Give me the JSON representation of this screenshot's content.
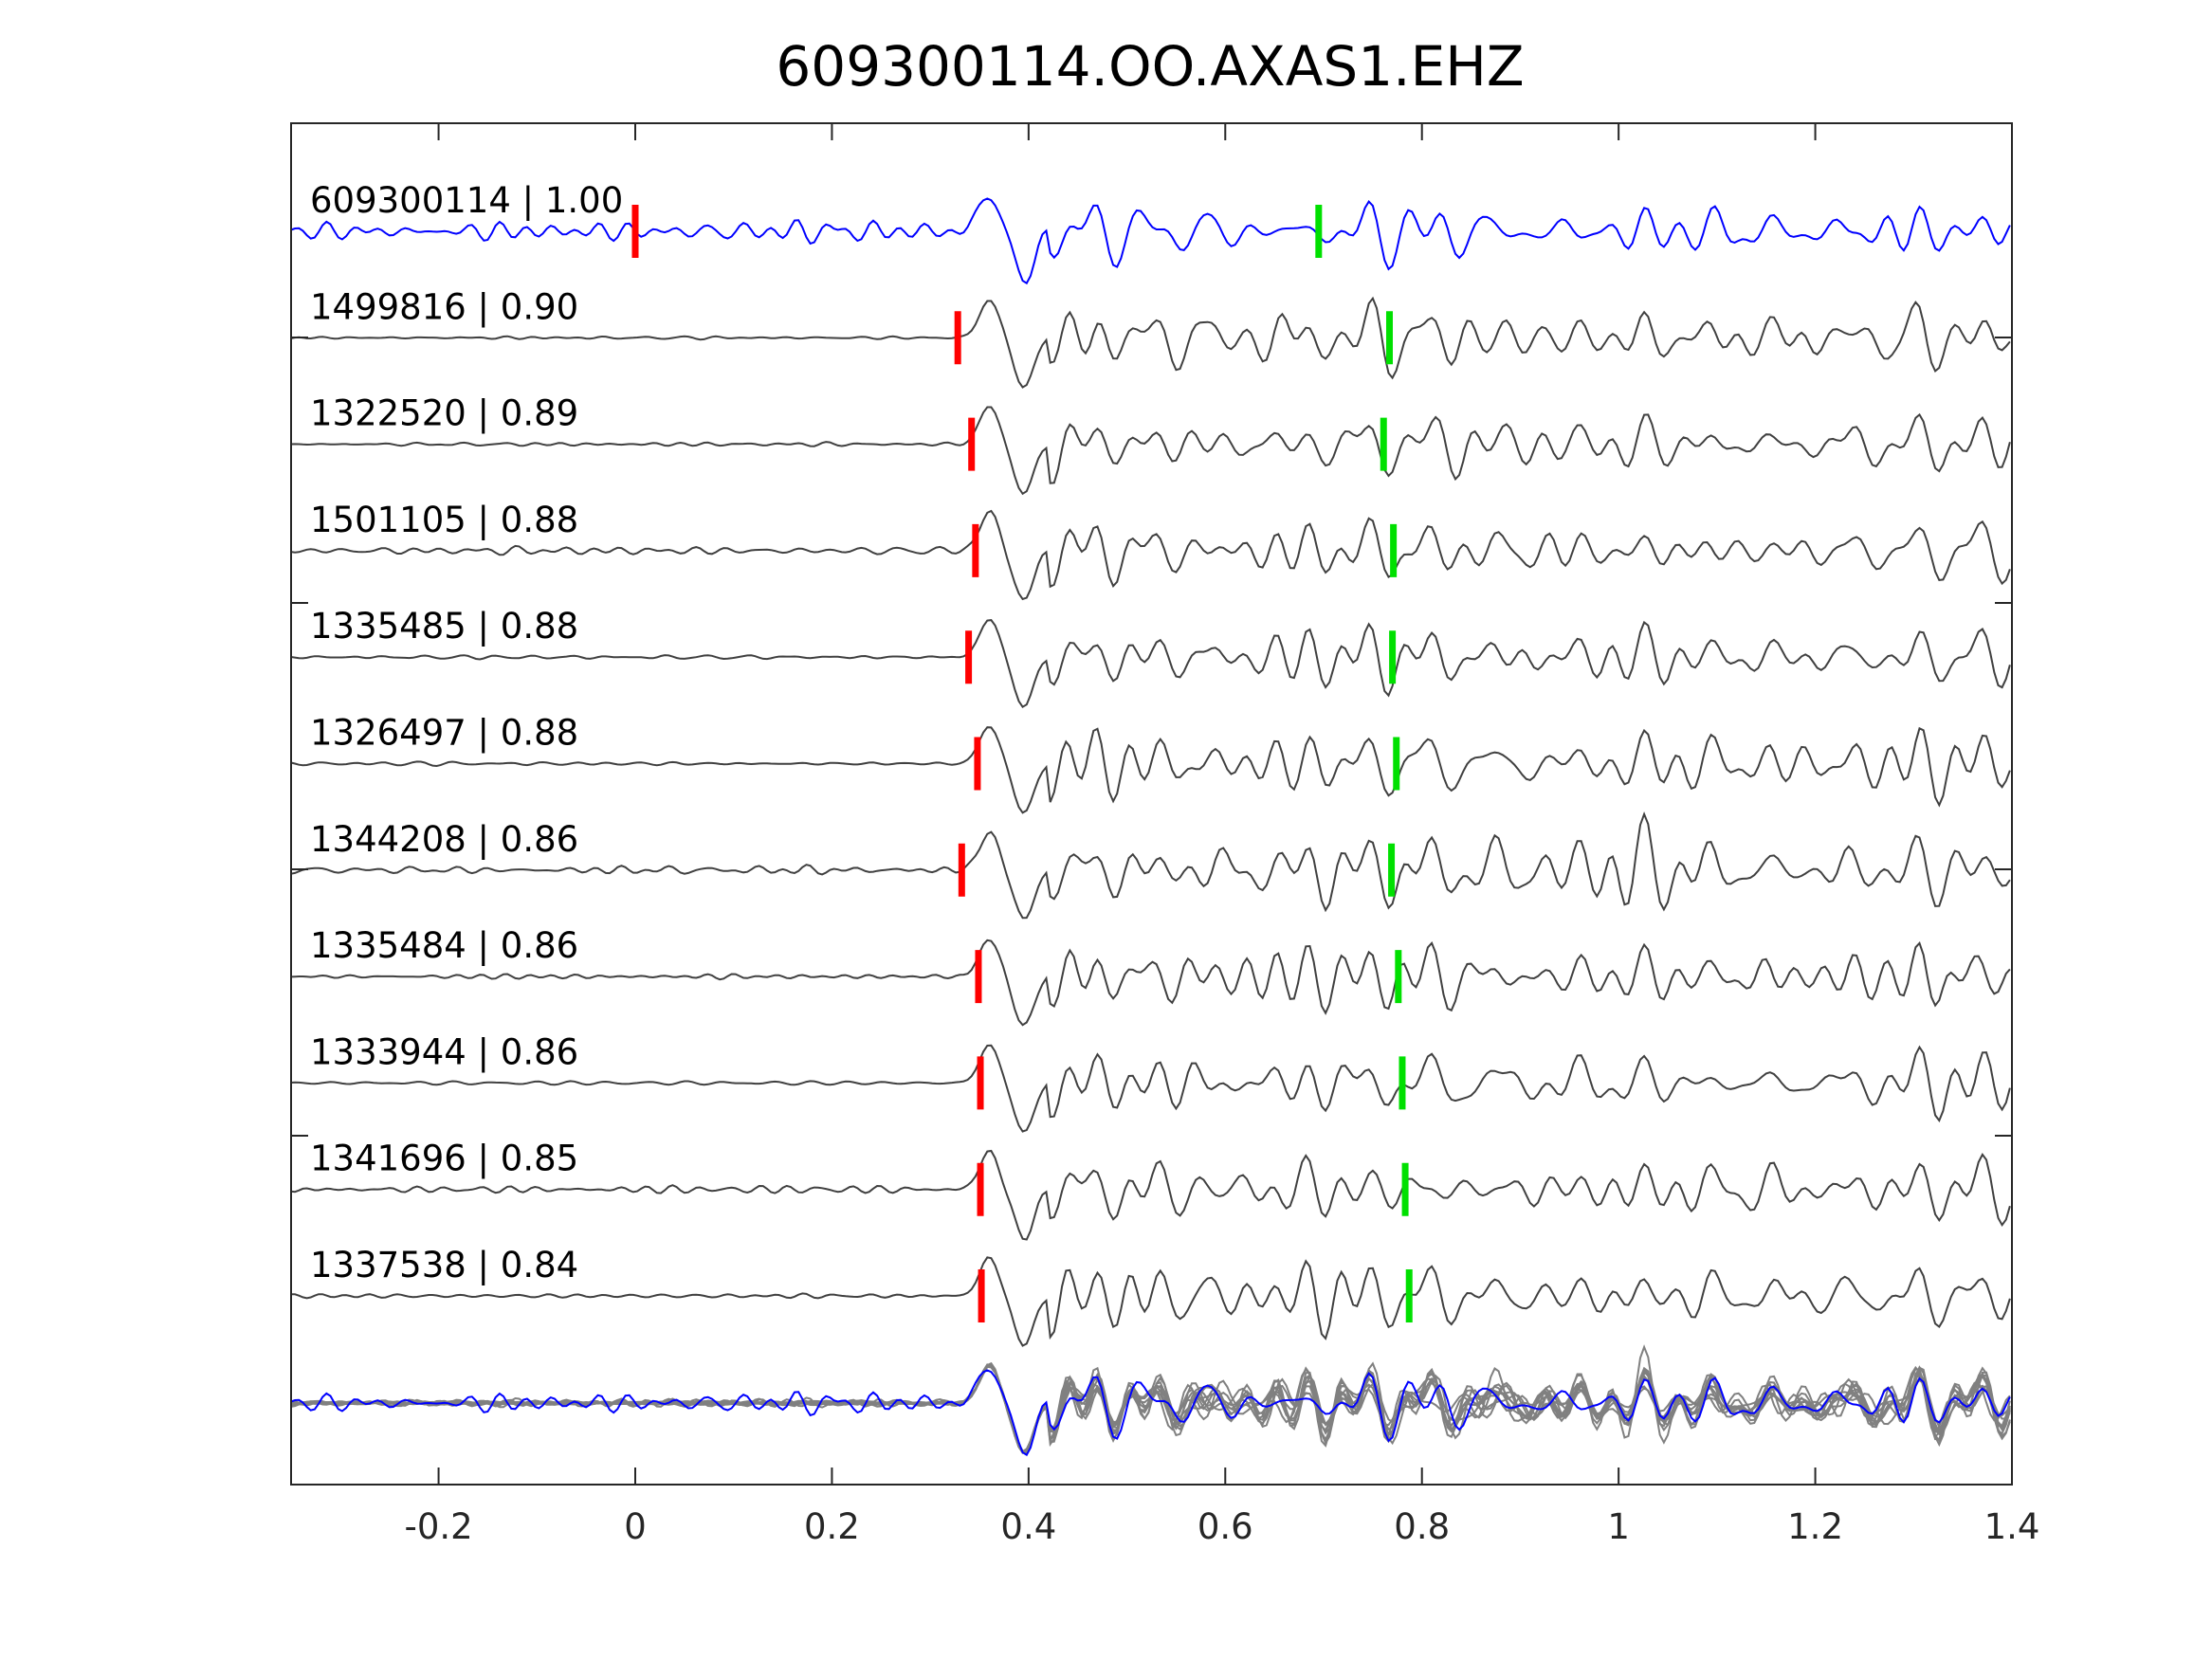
{
  "chart_data": {
    "type": "line",
    "title": "609300114.OO.AXAS1.EHZ",
    "xlabel": "",
    "ylabel": "",
    "xlim": [
      -0.35,
      1.4
    ],
    "xticks": [
      -0.2,
      0,
      0.2,
      0.4,
      0.6,
      0.8,
      1,
      1.2,
      1.4
    ],
    "xtick_labels": [
      "-0.2",
      "0",
      "0.2",
      "0.4",
      "0.6",
      "0.8",
      "1",
      "1.2",
      "1.4"
    ],
    "grid": false,
    "colors": {
      "template": "#0000ff",
      "trace": "#404040",
      "stack": "#808080",
      "p_pick": "#ff0000",
      "s_pick": "#00e000",
      "axis": "#262626"
    },
    "traces": [
      {
        "label": "609300114 | 1.00",
        "id": "609300114",
        "cc": 1.0,
        "p_pick": 0.0,
        "s_pick": 0.695,
        "template": true
      },
      {
        "label": "1499816 | 0.90",
        "id": "1499816",
        "cc": 0.9,
        "p_pick": 0.328,
        "s_pick": 0.767
      },
      {
        "label": "1322520 | 0.89",
        "id": "1322520",
        "cc": 0.89,
        "p_pick": 0.342,
        "s_pick": 0.761
      },
      {
        "label": "1501105 | 0.88",
        "id": "1501105",
        "cc": 0.88,
        "p_pick": 0.346,
        "s_pick": 0.771
      },
      {
        "label": "1335485 | 0.88",
        "id": "1335485",
        "cc": 0.88,
        "p_pick": 0.339,
        "s_pick": 0.77
      },
      {
        "label": "1326497 | 0.88",
        "id": "1326497",
        "cc": 0.88,
        "p_pick": 0.348,
        "s_pick": 0.774
      },
      {
        "label": "1344208 | 0.86",
        "id": "1344208",
        "cc": 0.86,
        "p_pick": 0.332,
        "s_pick": 0.769
      },
      {
        "label": "1335484 | 0.86",
        "id": "1335484",
        "cc": 0.86,
        "p_pick": 0.349,
        "s_pick": 0.776
      },
      {
        "label": "1333944 | 0.86",
        "id": "1333944",
        "cc": 0.86,
        "p_pick": 0.351,
        "s_pick": 0.78
      },
      {
        "label": "1341696 | 0.85",
        "id": "1341696",
        "cc": 0.85,
        "p_pick": 0.351,
        "s_pick": 0.783
      },
      {
        "label": "1337538 | 0.84",
        "id": "1337538",
        "cc": 0.84,
        "p_pick": 0.352,
        "s_pick": 0.787
      }
    ]
  }
}
